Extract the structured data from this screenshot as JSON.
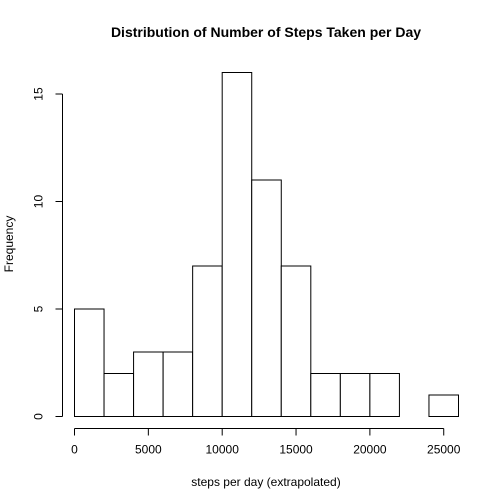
{
  "chart_data": {
    "type": "bar",
    "title": "Distribution of Number of Steps Taken per Day",
    "xlabel": "steps per day (extrapolated)",
    "ylabel": "Frequency",
    "bins": [
      {
        "x0": 0,
        "x1": 2000,
        "count": 5
      },
      {
        "x0": 2000,
        "x1": 4000,
        "count": 2
      },
      {
        "x0": 4000,
        "x1": 6000,
        "count": 3
      },
      {
        "x0": 6000,
        "x1": 8000,
        "count": 3
      },
      {
        "x0": 8000,
        "x1": 10000,
        "count": 7
      },
      {
        "x0": 10000,
        "x1": 12000,
        "count": 16
      },
      {
        "x0": 12000,
        "x1": 14000,
        "count": 11
      },
      {
        "x0": 14000,
        "x1": 16000,
        "count": 7
      },
      {
        "x0": 16000,
        "x1": 18000,
        "count": 2
      },
      {
        "x0": 18000,
        "x1": 20000,
        "count": 2
      },
      {
        "x0": 20000,
        "x1": 22000,
        "count": 2
      },
      {
        "x0": 22000,
        "x1": 24000,
        "count": 0
      },
      {
        "x0": 24000,
        "x1": 26000,
        "count": 1
      }
    ],
    "xticks": [
      0,
      5000,
      10000,
      15000,
      20000,
      25000
    ],
    "yticks": [
      0,
      5,
      10,
      15
    ],
    "xlim": [
      0,
      26000
    ],
    "ylim": [
      0,
      16
    ],
    "grid": false,
    "bar_fill": "#ffffff",
    "bar_stroke": "#000000"
  }
}
